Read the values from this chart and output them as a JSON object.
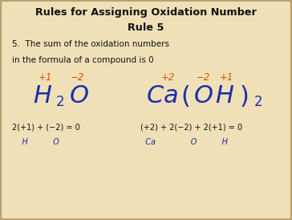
{
  "title_line1": "Rules for Assigning Oxidation Number",
  "title_line2": "Rule 5",
  "bg_color": "#f0e0b8",
  "border_color": "#b8a070",
  "title_color": "#111111",
  "body_color": "#111111",
  "formula_color": "#1a2eaa",
  "ox_color": "#cc5500",
  "eq_color": "#111111",
  "label_color": "#1a2eaa",
  "h2o_ox_H": "+1",
  "h2o_ox_O": "−2",
  "ca_ox_Ca": "+2",
  "ca_ox_O": "−2",
  "ca_ox_H": "+1",
  "h2o_eq_line1": "2(+1) + (−2) = 0",
  "h2o_eq_line2": "    H          O",
  "ca_eq_line1": "(+2) + 2(−2) + 2(+1) = 0",
  "ca_eq_line2": "  Ca              O          H"
}
